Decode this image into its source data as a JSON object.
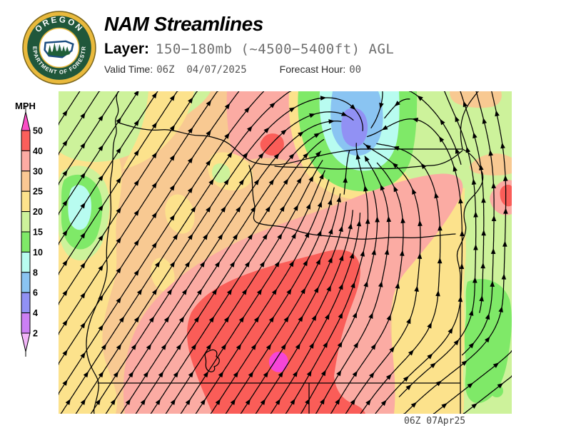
{
  "header": {
    "title": "NAM Streamlines",
    "layer_label": "Layer:",
    "layer_value": "150−180mb (~4500−5400ft) AGL",
    "valid_label": "Valid Time:",
    "valid_value": "06Z  04/07/2025",
    "forecast_label": "Forecast Hour:",
    "forecast_value": "00",
    "logo": {
      "top_text": "OREGON",
      "bottom_text": "DEPARTMENT OF FORESTRY"
    }
  },
  "legend": {
    "title": "MPH",
    "boundaries": [
      "50",
      "40",
      "30",
      "25",
      "20",
      "15",
      "10",
      "8",
      "6",
      "4",
      "2"
    ],
    "segment_colors": [
      "#FB5F5B",
      "#FCABA3",
      "#FBC893",
      "#FCE28C",
      "#CDF29B",
      "#7FE968",
      "#B8FCF0",
      "#8AC4F2",
      "#9191F4",
      "#CC7FF4"
    ],
    "above_max_color": "#FB4EC6",
    "below_min_color": "#F2B5F8"
  },
  "map": {
    "timestamp": "06Z 07Apr25",
    "palette": {
      "orange": "#F8C992",
      "yellow": "#FCE28C",
      "palegreen": "#CDF29B",
      "green": "#7FE968",
      "cyan": "#B8FCF0",
      "blue": "#8AC4F2",
      "violet": "#9191F4",
      "salmon": "#FBABA3",
      "red": "#FA5D58",
      "magenta": "#F645D8",
      "line": "#000000"
    }
  }
}
